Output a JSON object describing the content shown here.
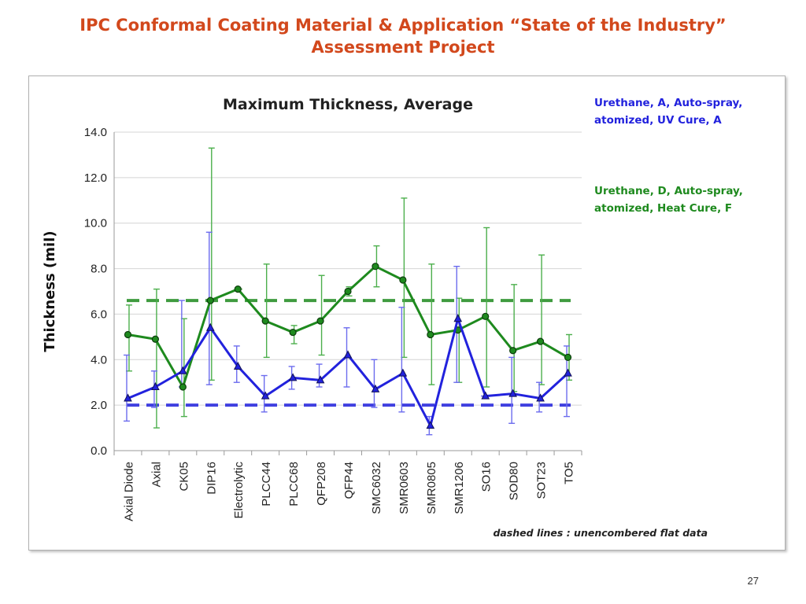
{
  "slide": {
    "title_line1": "IPC Conformal Coating Material & Application “State of the Industry”",
    "title_line2": "Assessment Project",
    "page_number": "27"
  },
  "chart_data": {
    "type": "line",
    "title": "Maximum Thickness, Average",
    "xlabel": "",
    "ylabel": "Thickness (mil)",
    "ylim": [
      0,
      14
    ],
    "yticks": [
      "0.0",
      "2.0",
      "4.0",
      "6.0",
      "8.0",
      "10.0",
      "12.0",
      "14.0"
    ],
    "grid": "horizontal",
    "categories": [
      "Axial Diode",
      "Axial",
      "CK05",
      "DIP16",
      "Electrolytic",
      "PLCC44",
      "PLCC68",
      "QFP208",
      "QFP44",
      "SMC6032",
      "SMR0603",
      "SMR0805",
      "SMR1206",
      "SO16",
      "SOD80",
      "SOT23",
      "TO5"
    ],
    "series": [
      {
        "name": "Urethane, A, Auto-spray, atomized, UV Cure, A",
        "legend_lines": [
          "Urethane, A, Auto-spray,",
          "atomized, UV Cure, A"
        ],
        "color": "#2222dd",
        "errorbar_color": "#6c6cee",
        "marker": "triangle",
        "values": [
          2.3,
          2.8,
          3.5,
          5.4,
          3.7,
          2.4,
          3.2,
          3.1,
          4.2,
          2.7,
          3.4,
          1.1,
          5.8,
          2.4,
          2.5,
          2.3,
          3.4
        ],
        "err_low": [
          1.3,
          1.9,
          2.8,
          2.9,
          3.0,
          1.7,
          2.7,
          2.8,
          2.8,
          1.9,
          1.7,
          0.7,
          3.0,
          2.4,
          1.2,
          1.7,
          1.5
        ],
        "err_high": [
          4.2,
          3.5,
          6.6,
          9.6,
          4.6,
          3.3,
          3.7,
          3.8,
          5.4,
          4.0,
          6.3,
          1.5,
          8.1,
          2.4,
          4.1,
          3.0,
          4.6
        ],
        "flat_reference": 2.0
      },
      {
        "name": "Urethane, D, Auto-spray, atomized, Heat Cure, F",
        "legend_lines": [
          "Urethane, D, Auto-spray,",
          "atomized, Heat Cure, F"
        ],
        "color": "#1e8a1e",
        "errorbar_color": "#4caf4c",
        "marker": "circle",
        "values": [
          5.1,
          4.9,
          2.8,
          6.6,
          7.1,
          5.7,
          5.2,
          5.7,
          7.0,
          8.1,
          7.5,
          5.1,
          5.3,
          5.9,
          4.4,
          4.8,
          4.1
        ],
        "err_low": [
          3.5,
          1.0,
          1.5,
          3.1,
          7.1,
          4.1,
          4.7,
          4.2,
          6.8,
          7.2,
          4.1,
          2.9,
          3.0,
          2.8,
          2.6,
          2.9,
          3.1
        ],
        "err_high": [
          6.4,
          7.1,
          5.8,
          13.3,
          7.1,
          8.2,
          5.5,
          7.7,
          7.2,
          9.0,
          11.1,
          8.2,
          6.7,
          9.8,
          7.3,
          8.6,
          5.1
        ],
        "flat_reference": 6.6
      }
    ],
    "annotation": "dashed lines : unencombered flat data"
  }
}
